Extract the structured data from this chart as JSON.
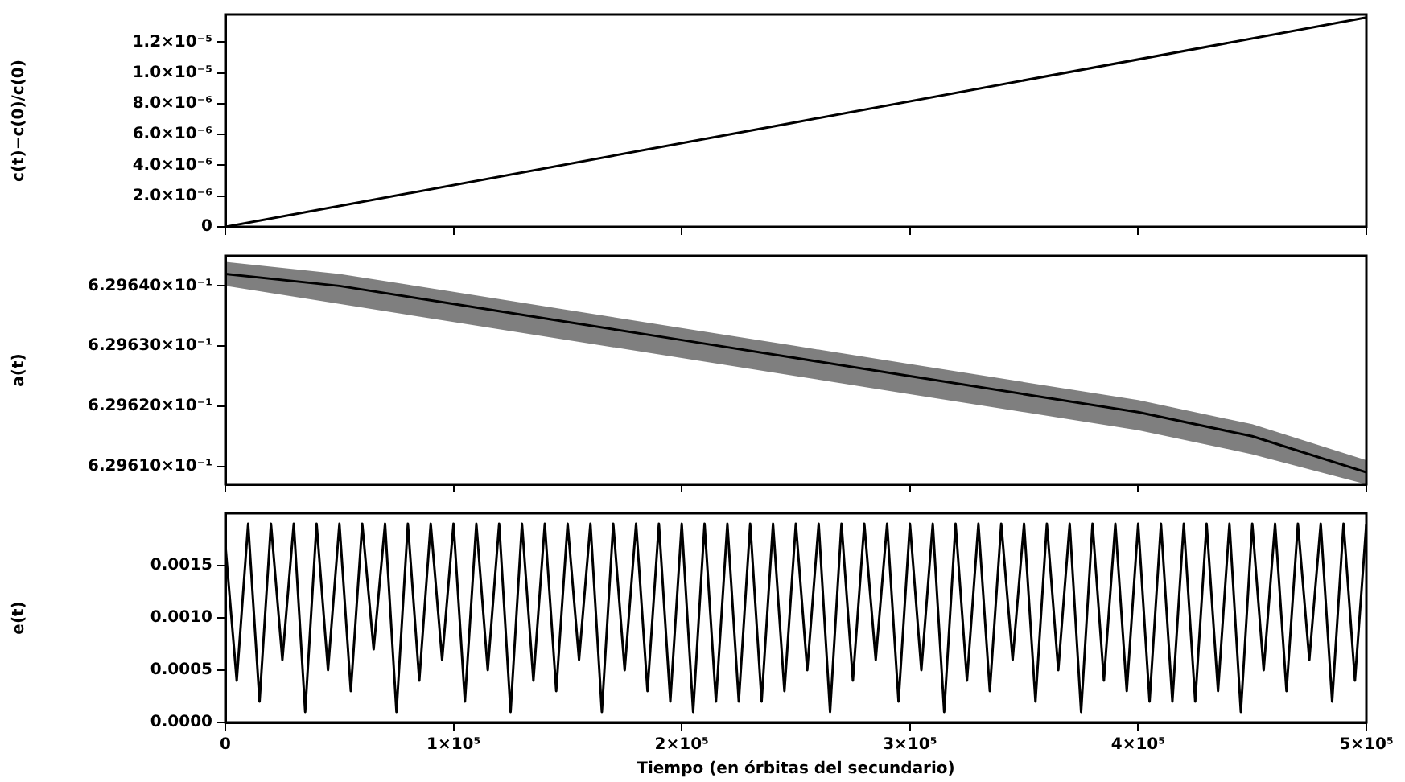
{
  "chart_data": [
    {
      "type": "line",
      "ylabel": "c(t)−c(0)/c(0)",
      "xlim": [
        0,
        500000
      ],
      "xticks": [
        0,
        100000,
        200000,
        300000,
        400000,
        500000
      ],
      "ylim": [
        0,
        1.38e-05
      ],
      "yticks": [
        0,
        {
          "value": 2e-06,
          "label": "2.0×10⁻⁶"
        },
        {
          "value": 4e-06,
          "label": "4.0×10⁻⁶"
        },
        {
          "value": 6e-06,
          "label": "6.0×10⁻⁶"
        },
        {
          "value": 8e-06,
          "label": "8.0×10⁻⁶"
        },
        {
          "value": 1e-05,
          "label": "1.0×10⁻⁵"
        },
        {
          "value": 1.2e-05,
          "label": "1.2×10⁻⁵"
        }
      ],
      "tick_labels": "y",
      "marker": "none",
      "line_style": "solid",
      "series": [
        {
          "color": "#000000",
          "x": [
            0,
            250000,
            500000
          ],
          "values": [
            0,
            6.8e-06,
            1.36e-05
          ]
        }
      ]
    },
    {
      "type": "line",
      "ylabel": "a(t)",
      "xlim": [
        0,
        500000
      ],
      "xticks": [
        0,
        100000,
        200000,
        300000,
        400000,
        500000
      ],
      "ylim": [
        0.629607,
        0.629645
      ],
      "yticks": [
        {
          "value": 0.62961,
          "label": "6.29610×10⁻¹"
        },
        {
          "value": 0.62962,
          "label": "6.29620×10⁻¹"
        },
        {
          "value": 0.62963,
          "label": "6.29630×10⁻¹"
        },
        {
          "value": 0.62964,
          "label": "6.29640×10⁻¹"
        }
      ],
      "tick_labels": "y",
      "marker": "none",
      "line_style": "solid",
      "series": [
        {
          "color": "#000000",
          "x": [
            0,
            50000,
            100000,
            150000,
            200000,
            250000,
            300000,
            350000,
            400000,
            450000,
            500000
          ],
          "values": [
            0.629642,
            0.62964,
            0.629637,
            0.629634,
            0.629631,
            0.629628,
            0.629625,
            0.629622,
            0.629619,
            0.629615,
            0.629609
          ],
          "upper": [
            0.629644,
            0.629642,
            0.629639,
            0.629636,
            0.629633,
            0.62963,
            0.629627,
            0.629624,
            0.629621,
            0.629617,
            0.629611
          ],
          "lower": [
            0.62964,
            0.629637,
            0.629634,
            0.629631,
            0.629628,
            0.629625,
            0.629622,
            0.629619,
            0.629616,
            0.629612,
            0.629607
          ]
        }
      ]
    },
    {
      "type": "line",
      "ylabel": "e(t)",
      "xlabel": "Tiempo (en órbitas del secundario)",
      "xlim": [
        0,
        500000
      ],
      "xticks": [
        0,
        {
          "value": 100000,
          "label": "1×10⁵"
        },
        {
          "value": 200000,
          "label": "2×10⁵"
        },
        {
          "value": 300000,
          "label": "3×10⁵"
        },
        {
          "value": 400000,
          "label": "4×10⁵"
        },
        {
          "value": 500000,
          "label": "5×10⁵"
        }
      ],
      "ylim": [
        0,
        0.002
      ],
      "yticks": [
        {
          "value": 0,
          "label": "0.0000"
        },
        {
          "value": 0.0005,
          "label": "0.0005"
        },
        {
          "value": 0.001,
          "label": "0.0010"
        },
        {
          "value": 0.0015,
          "label": "0.0015"
        }
      ],
      "marker": "none",
      "line_style": "solid",
      "series": [
        {
          "color": "#000000",
          "x": [
            0,
            5000,
            10000,
            15000,
            20000,
            25000,
            30000,
            35000,
            40000,
            45000,
            50000,
            55000,
            60000,
            65000,
            70000,
            75000,
            80000,
            85000,
            90000,
            95000,
            100000,
            105000,
            110000,
            115000,
            120000,
            125000,
            130000,
            135000,
            140000,
            145000,
            150000,
            155000,
            160000,
            165000,
            170000,
            175000,
            180000,
            185000,
            190000,
            195000,
            200000,
            205000,
            210000,
            215000,
            220000,
            225000,
            230000,
            235000,
            240000,
            245000,
            250000,
            255000,
            260000,
            265000,
            270000,
            275000,
            280000,
            285000,
            290000,
            295000,
            300000,
            305000,
            310000,
            315000,
            320000,
            325000,
            330000,
            335000,
            340000,
            345000,
            350000,
            355000,
            360000,
            365000,
            370000,
            375000,
            380000,
            385000,
            390000,
            395000,
            400000,
            405000,
            410000,
            415000,
            420000,
            425000,
            430000,
            435000,
            440000,
            445000,
            450000,
            455000,
            460000,
            465000,
            470000,
            475000,
            480000,
            485000,
            490000,
            495000,
            500000
          ],
          "values": [
            0.0017,
            0.0004,
            0.0019,
            0.0002,
            0.0019,
            0.0006,
            0.0019,
            0.0001,
            0.0019,
            0.0005,
            0.0019,
            0.0003,
            0.0019,
            0.0007,
            0.0019,
            0.0001,
            0.0019,
            0.0004,
            0.0019,
            0.0006,
            0.0019,
            0.0002,
            0.0019,
            0.0005,
            0.0019,
            0.0001,
            0.0019,
            0.0004,
            0.0019,
            0.0003,
            0.0019,
            0.0006,
            0.0019,
            0.0001,
            0.0019,
            0.0005,
            0.0019,
            0.0003,
            0.0019,
            0.0002,
            0.0019,
            0.0001,
            0.0019,
            0.0002,
            0.0019,
            0.0002,
            0.0019,
            0.0002,
            0.0019,
            0.0003,
            0.0019,
            0.0005,
            0.0019,
            0.0001,
            0.0019,
            0.0004,
            0.0019,
            0.0006,
            0.0019,
            0.0002,
            0.0019,
            0.0005,
            0.0019,
            0.0001,
            0.0019,
            0.0004,
            0.0019,
            0.0003,
            0.0019,
            0.0006,
            0.0019,
            0.0002,
            0.0019,
            0.0005,
            0.0019,
            0.0001,
            0.0019,
            0.0004,
            0.0019,
            0.0003,
            0.0019,
            0.0002,
            0.0019,
            0.0002,
            0.0019,
            0.0002,
            0.0019,
            0.0003,
            0.0019,
            0.0001,
            0.0019,
            0.0005,
            0.0019,
            0.0003,
            0.0019,
            0.0006,
            0.0019,
            0.0002,
            0.0019,
            0.0004,
            0.0019
          ]
        }
      ]
    }
  ]
}
